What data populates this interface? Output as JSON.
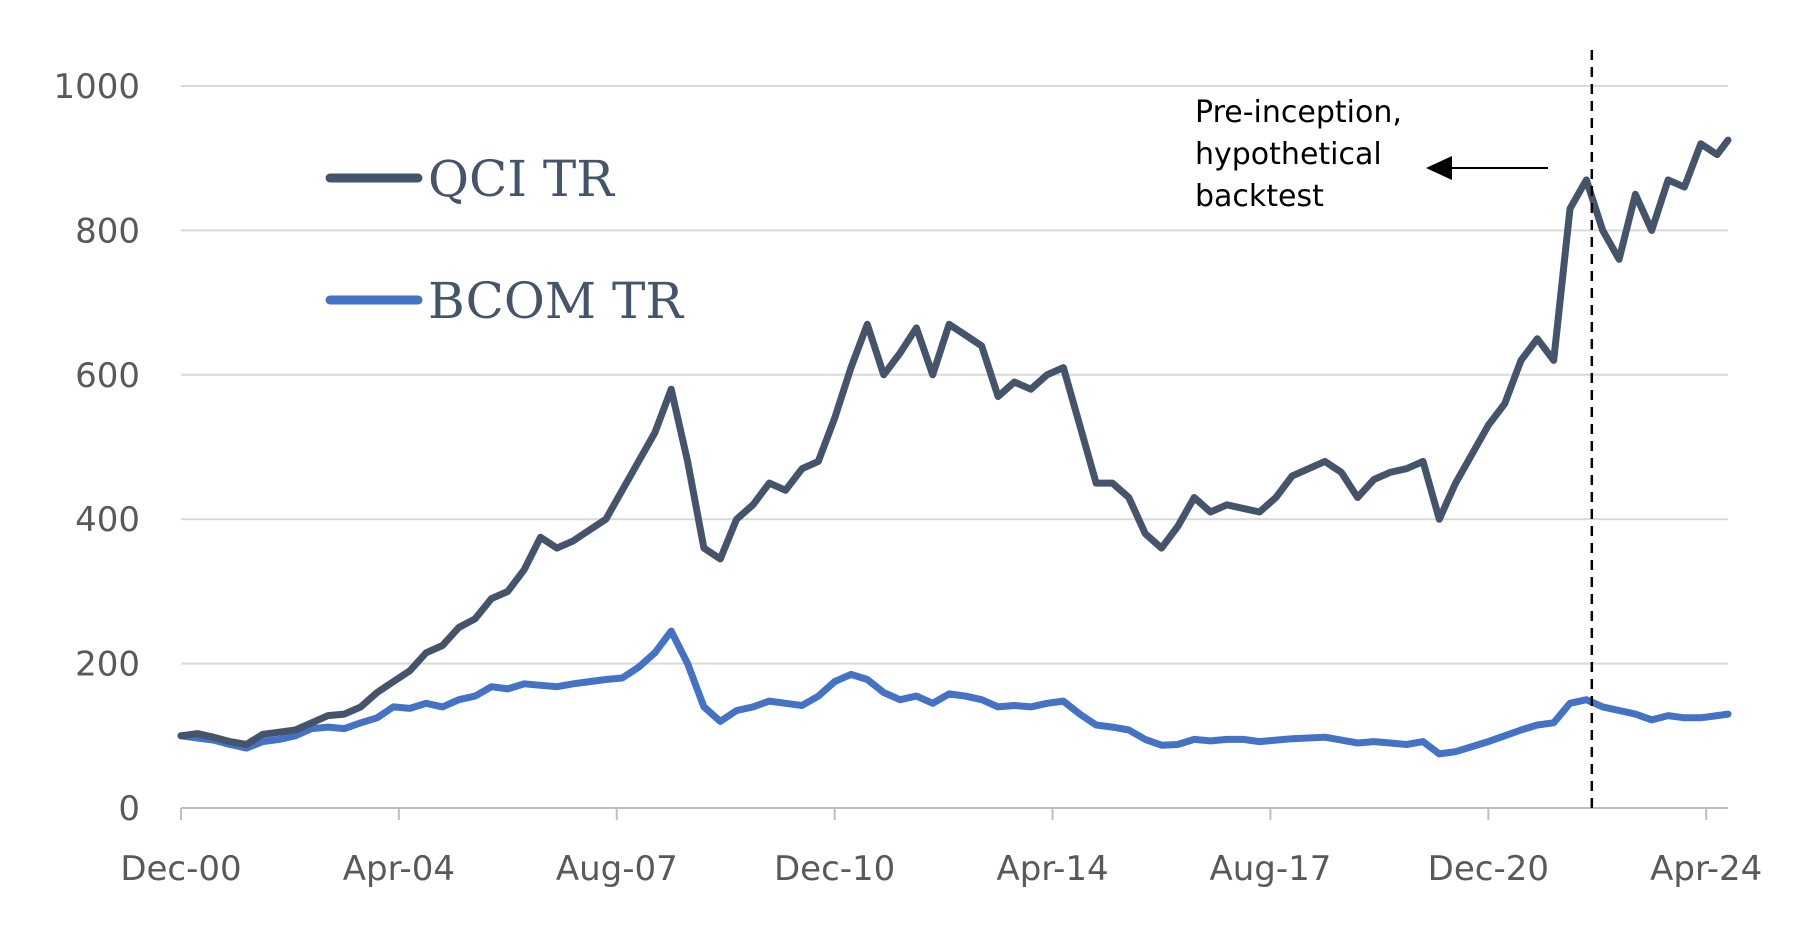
{
  "chart_data": {
    "type": "line",
    "title": "",
    "xlabel": "",
    "ylabel": "",
    "ylim": [
      0,
      1000
    ],
    "yticks": [
      0,
      200,
      400,
      600,
      800,
      1000
    ],
    "xticks": [
      "Dec-00",
      "Apr-04",
      "Aug-07",
      "Dec-10",
      "Apr-14",
      "Aug-17",
      "Dec-20",
      "Apr-24"
    ],
    "xlim": [
      "2000-12",
      "2024-08"
    ],
    "grid": true,
    "legend_position": "top-left",
    "annotation": {
      "lines": [
        "Pre-inception,",
        "hypothetical",
        "backtest"
      ],
      "arrow_direction": "left",
      "divider_date": "2022-07"
    },
    "series": [
      {
        "name": "QCI TR",
        "color": "#44546a",
        "points": [
          [
            "2000-12",
            100
          ],
          [
            "2001-03",
            103
          ],
          [
            "2001-06",
            98
          ],
          [
            "2001-09",
            92
          ],
          [
            "2001-12",
            88
          ],
          [
            "2002-03",
            102
          ],
          [
            "2002-06",
            105
          ],
          [
            "2002-09",
            108
          ],
          [
            "2002-12",
            118
          ],
          [
            "2003-03",
            128
          ],
          [
            "2003-06",
            130
          ],
          [
            "2003-09",
            140
          ],
          [
            "2003-12",
            160
          ],
          [
            "2004-03",
            175
          ],
          [
            "2004-06",
            190
          ],
          [
            "2004-09",
            215
          ],
          [
            "2004-12",
            225
          ],
          [
            "2005-03",
            250
          ],
          [
            "2005-06",
            262
          ],
          [
            "2005-09",
            290
          ],
          [
            "2005-12",
            300
          ],
          [
            "2006-03",
            330
          ],
          [
            "2006-06",
            375
          ],
          [
            "2006-09",
            360
          ],
          [
            "2006-12",
            370
          ],
          [
            "2007-03",
            385
          ],
          [
            "2007-06",
            400
          ],
          [
            "2007-09",
            440
          ],
          [
            "2007-12",
            480
          ],
          [
            "2008-03",
            520
          ],
          [
            "2008-06",
            580
          ],
          [
            "2008-09",
            480
          ],
          [
            "2008-12",
            360
          ],
          [
            "2009-03",
            345
          ],
          [
            "2009-06",
            400
          ],
          [
            "2009-09",
            420
          ],
          [
            "2009-12",
            450
          ],
          [
            "2010-03",
            440
          ],
          [
            "2010-06",
            470
          ],
          [
            "2010-09",
            480
          ],
          [
            "2010-12",
            540
          ],
          [
            "2011-03",
            610
          ],
          [
            "2011-06",
            670
          ],
          [
            "2011-09",
            600
          ],
          [
            "2011-12",
            630
          ],
          [
            "2012-03",
            665
          ],
          [
            "2012-06",
            600
          ],
          [
            "2012-09",
            670
          ],
          [
            "2012-12",
            655
          ],
          [
            "2013-03",
            640
          ],
          [
            "2013-06",
            570
          ],
          [
            "2013-09",
            590
          ],
          [
            "2013-12",
            580
          ],
          [
            "2014-03",
            600
          ],
          [
            "2014-06",
            610
          ],
          [
            "2014-09",
            530
          ],
          [
            "2014-12",
            450
          ],
          [
            "2015-03",
            450
          ],
          [
            "2015-06",
            430
          ],
          [
            "2015-09",
            380
          ],
          [
            "2015-12",
            360
          ],
          [
            "2016-03",
            390
          ],
          [
            "2016-06",
            430
          ],
          [
            "2016-09",
            410
          ],
          [
            "2016-12",
            420
          ],
          [
            "2017-03",
            415
          ],
          [
            "2017-06",
            410
          ],
          [
            "2017-09",
            430
          ],
          [
            "2017-12",
            460
          ],
          [
            "2018-03",
            470
          ],
          [
            "2018-06",
            480
          ],
          [
            "2018-09",
            465
          ],
          [
            "2018-12",
            430
          ],
          [
            "2019-03",
            455
          ],
          [
            "2019-06",
            465
          ],
          [
            "2019-09",
            470
          ],
          [
            "2019-12",
            480
          ],
          [
            "2020-03",
            400
          ],
          [
            "2020-06",
            450
          ],
          [
            "2020-09",
            490
          ],
          [
            "2020-12",
            530
          ],
          [
            "2021-03",
            560
          ],
          [
            "2021-06",
            620
          ],
          [
            "2021-09",
            650
          ],
          [
            "2021-12",
            620
          ],
          [
            "2022-03",
            830
          ],
          [
            "2022-06",
            870
          ],
          [
            "2022-09",
            800
          ],
          [
            "2022-12",
            760
          ],
          [
            "2023-03",
            850
          ],
          [
            "2023-06",
            800
          ],
          [
            "2023-09",
            870
          ],
          [
            "2023-12",
            860
          ],
          [
            "2024-03",
            920
          ],
          [
            "2024-06",
            905
          ],
          [
            "2024-08",
            925
          ]
        ]
      },
      {
        "name": "BCOM TR",
        "color": "#4472c4",
        "points": [
          [
            "2000-12",
            100
          ],
          [
            "2001-03",
            97
          ],
          [
            "2001-06",
            94
          ],
          [
            "2001-09",
            88
          ],
          [
            "2001-12",
            83
          ],
          [
            "2002-03",
            92
          ],
          [
            "2002-06",
            95
          ],
          [
            "2002-09",
            100
          ],
          [
            "2002-12",
            110
          ],
          [
            "2003-03",
            112
          ],
          [
            "2003-06",
            110
          ],
          [
            "2003-09",
            118
          ],
          [
            "2003-12",
            125
          ],
          [
            "2004-03",
            140
          ],
          [
            "2004-06",
            138
          ],
          [
            "2004-09",
            145
          ],
          [
            "2004-12",
            140
          ],
          [
            "2005-03",
            150
          ],
          [
            "2005-06",
            155
          ],
          [
            "2005-09",
            168
          ],
          [
            "2005-12",
            165
          ],
          [
            "2006-03",
            172
          ],
          [
            "2006-06",
            170
          ],
          [
            "2006-09",
            168
          ],
          [
            "2006-12",
            172
          ],
          [
            "2007-03",
            175
          ],
          [
            "2007-06",
            178
          ],
          [
            "2007-09",
            180
          ],
          [
            "2007-12",
            195
          ],
          [
            "2008-03",
            215
          ],
          [
            "2008-06",
            245
          ],
          [
            "2008-09",
            200
          ],
          [
            "2008-12",
            140
          ],
          [
            "2009-03",
            120
          ],
          [
            "2009-06",
            135
          ],
          [
            "2009-09",
            140
          ],
          [
            "2009-12",
            148
          ],
          [
            "2010-03",
            145
          ],
          [
            "2010-06",
            142
          ],
          [
            "2010-09",
            155
          ],
          [
            "2010-12",
            175
          ],
          [
            "2011-03",
            185
          ],
          [
            "2011-06",
            178
          ],
          [
            "2011-09",
            160
          ],
          [
            "2011-12",
            150
          ],
          [
            "2012-03",
            155
          ],
          [
            "2012-06",
            145
          ],
          [
            "2012-09",
            158
          ],
          [
            "2012-12",
            155
          ],
          [
            "2013-03",
            150
          ],
          [
            "2013-06",
            140
          ],
          [
            "2013-09",
            142
          ],
          [
            "2013-12",
            140
          ],
          [
            "2014-03",
            145
          ],
          [
            "2014-06",
            148
          ],
          [
            "2014-09",
            130
          ],
          [
            "2014-12",
            115
          ],
          [
            "2015-03",
            112
          ],
          [
            "2015-06",
            108
          ],
          [
            "2015-09",
            95
          ],
          [
            "2015-12",
            87
          ],
          [
            "2016-03",
            88
          ],
          [
            "2016-06",
            95
          ],
          [
            "2016-09",
            93
          ],
          [
            "2016-12",
            95
          ],
          [
            "2017-03",
            95
          ],
          [
            "2017-06",
            92
          ],
          [
            "2017-09",
            94
          ],
          [
            "2017-12",
            96
          ],
          [
            "2018-03",
            97
          ],
          [
            "2018-06",
            98
          ],
          [
            "2018-09",
            94
          ],
          [
            "2018-12",
            90
          ],
          [
            "2019-03",
            92
          ],
          [
            "2019-06",
            90
          ],
          [
            "2019-09",
            88
          ],
          [
            "2019-12",
            92
          ],
          [
            "2020-03",
            75
          ],
          [
            "2020-06",
            78
          ],
          [
            "2020-09",
            85
          ],
          [
            "2020-12",
            92
          ],
          [
            "2021-03",
            100
          ],
          [
            "2021-06",
            108
          ],
          [
            "2021-09",
            115
          ],
          [
            "2021-12",
            118
          ],
          [
            "2022-03",
            145
          ],
          [
            "2022-06",
            150
          ],
          [
            "2022-09",
            140
          ],
          [
            "2022-12",
            135
          ],
          [
            "2023-03",
            130
          ],
          [
            "2023-06",
            122
          ],
          [
            "2023-09",
            128
          ],
          [
            "2023-12",
            125
          ],
          [
            "2024-03",
            125
          ],
          [
            "2024-06",
            128
          ],
          [
            "2024-08",
            130
          ]
        ]
      }
    ]
  }
}
